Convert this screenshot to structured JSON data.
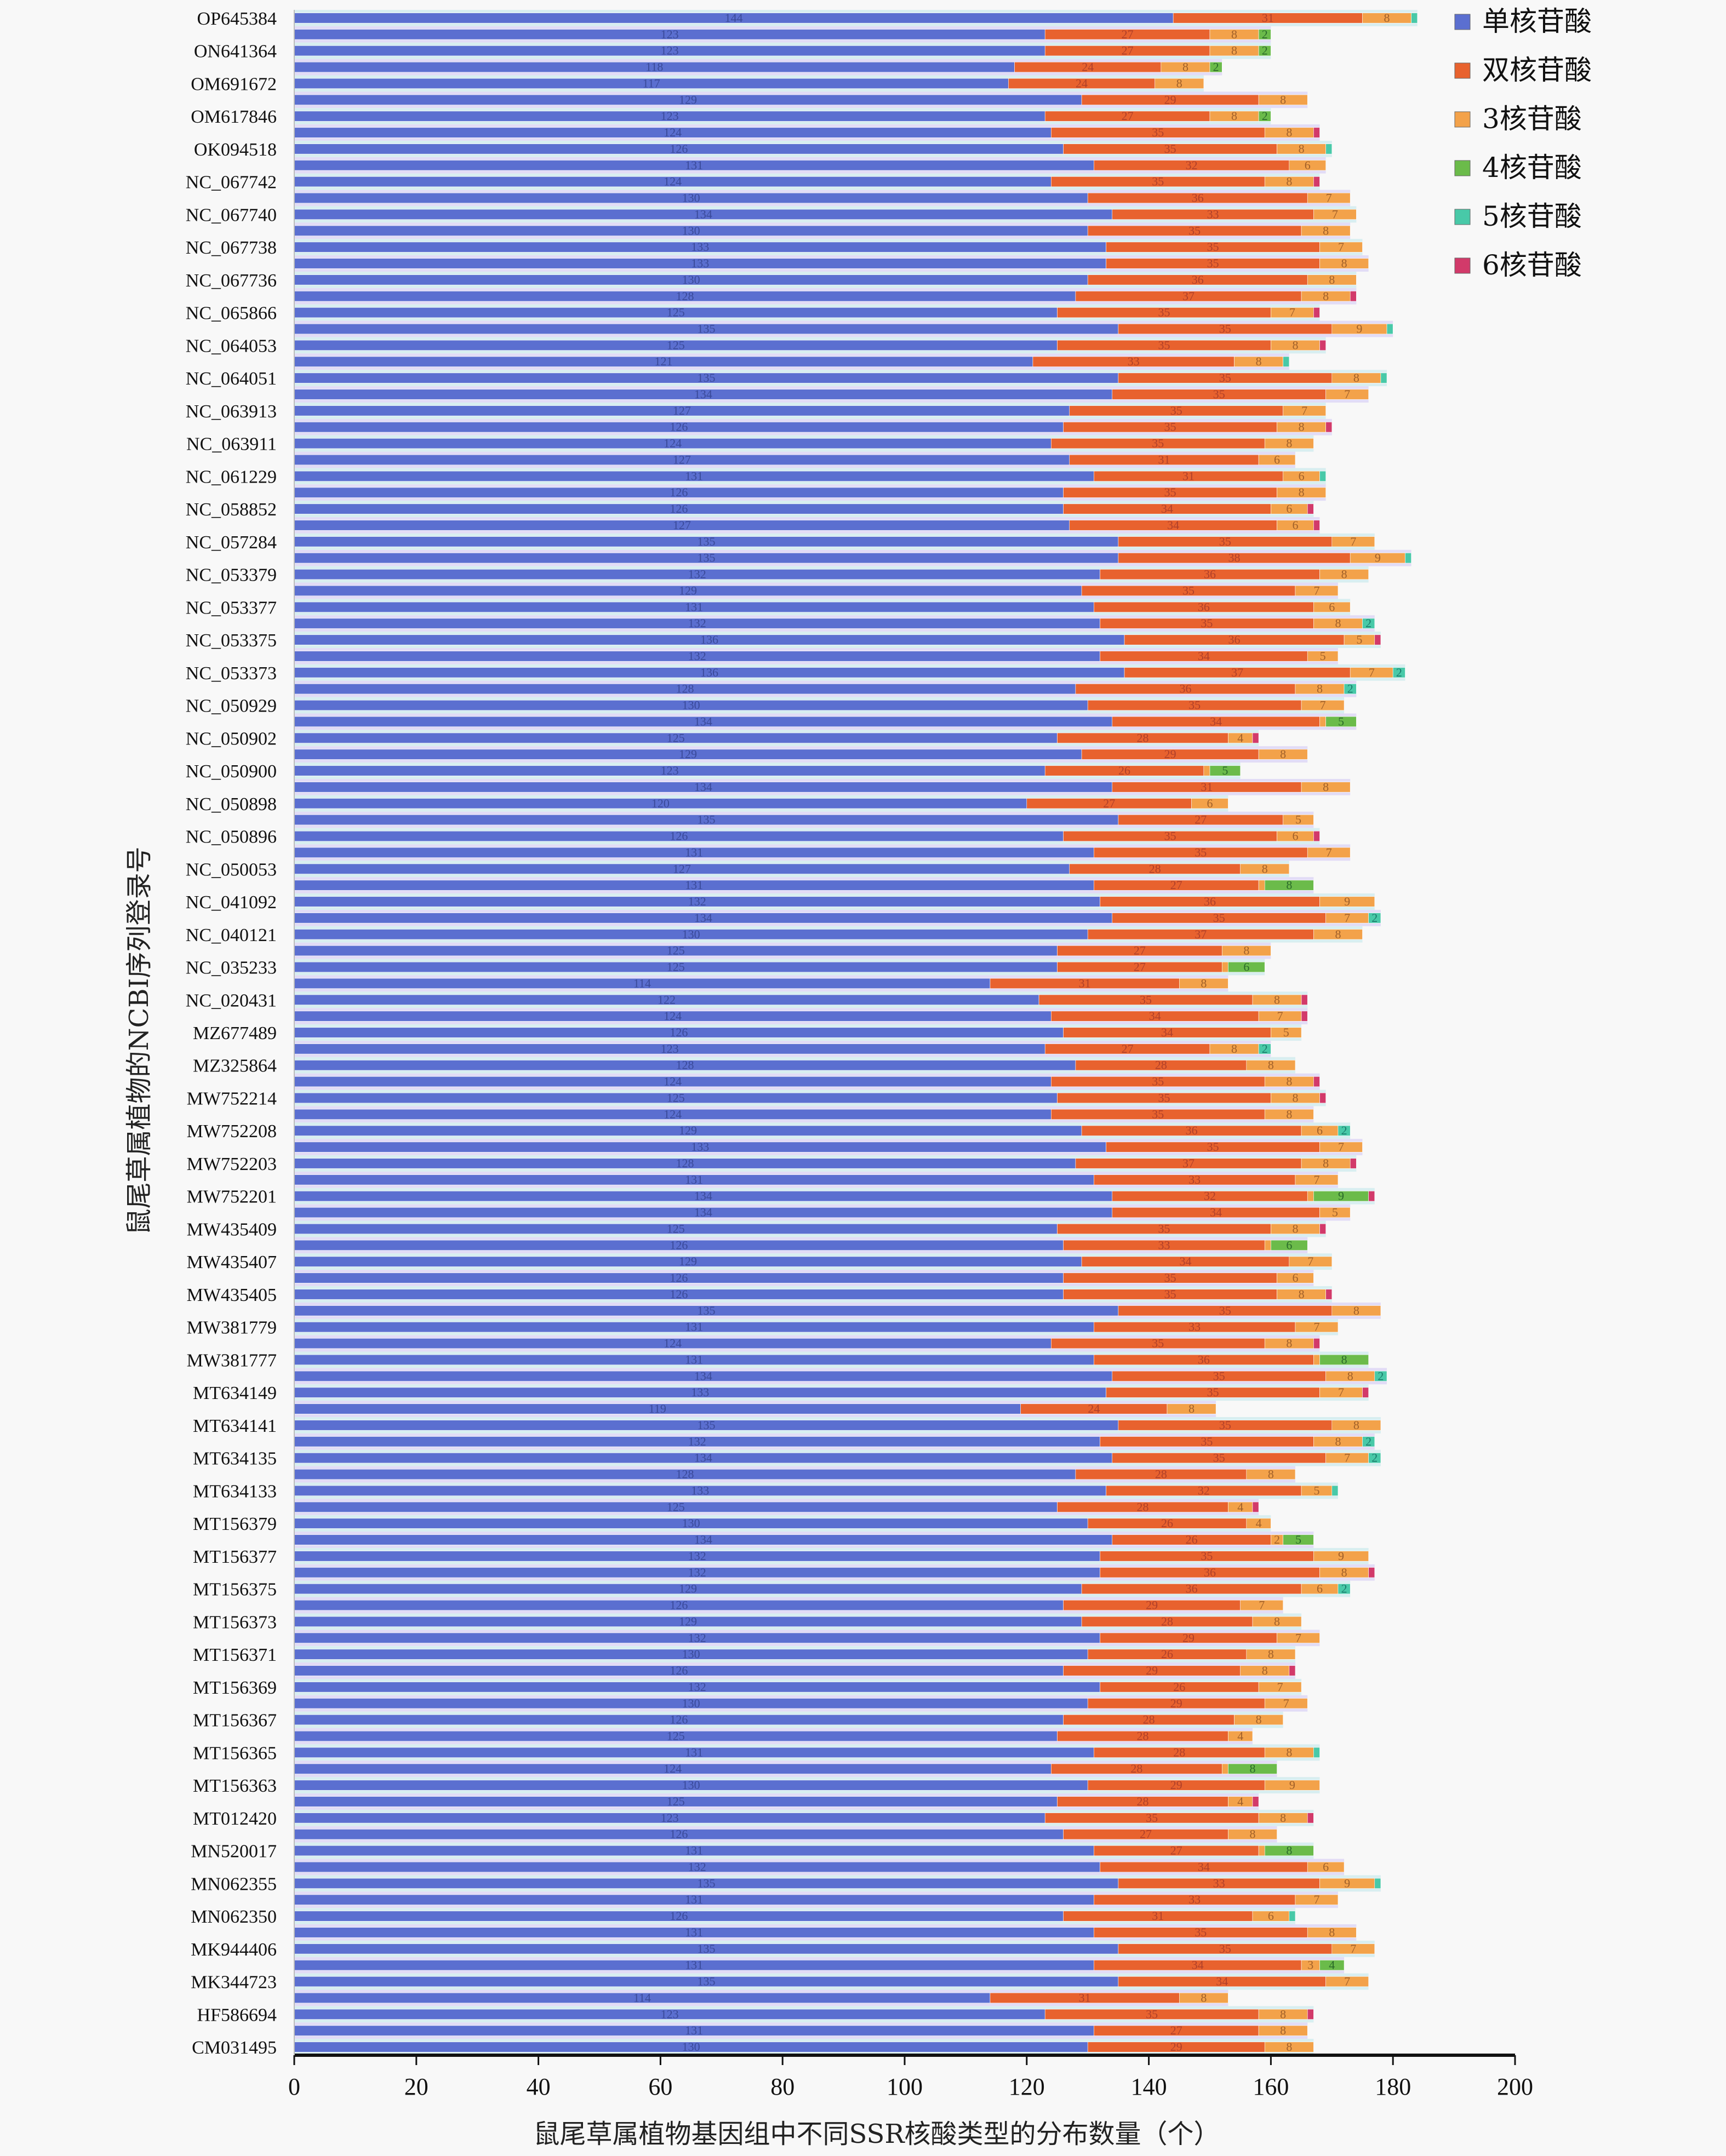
{
  "chart_data": {
    "type": "bar",
    "orientation": "horizontal",
    "stacked": true,
    "title": "",
    "xlabel": "鼠尾草属植物基因组中不同SSR核酸类型的分布数量（个）",
    "ylabel": "鼠尾草属植物的NCBI序列登录号",
    "xlim": [
      0,
      200
    ],
    "xticks": [
      0,
      20,
      40,
      60,
      80,
      100,
      120,
      140,
      160,
      180,
      200
    ],
    "legend_position": "top-right",
    "series_names": [
      "单核苷酸",
      "双核苷酸",
      "3核苷酸",
      "4核苷酸",
      "5核苷酸",
      "6核苷酸"
    ],
    "series_colors": [
      "#5b6fd0",
      "#e8622e",
      "#f3a24a",
      "#6bbb4a",
      "#48c9a8",
      "#d23a6a"
    ],
    "categories": [
      "OP645384",
      "",
      "ON641364",
      "",
      "OM691672",
      "",
      "OM617846",
      "",
      "OK094518",
      "",
      "NC_067742",
      "",
      "NC_067740",
      "",
      "NC_067738",
      "",
      "NC_067736",
      "",
      "NC_065866",
      "",
      "NC_064053",
      "",
      "NC_064051",
      "",
      "NC_063913",
      "",
      "NC_063911",
      "",
      "NC_061229",
      "",
      "NC_058852",
      "",
      "NC_057284",
      "",
      "NC_053379",
      "",
      "NC_053377",
      "",
      "NC_053375",
      "",
      "NC_053373",
      "",
      "NC_050929",
      "",
      "NC_050902",
      "",
      "NC_050900",
      "",
      "NC_050898",
      "",
      "NC_050896",
      "",
      "NC_050053",
      "",
      "NC_041092",
      "",
      "NC_040121",
      "",
      "NC_035233",
      "",
      "NC_020431",
      "",
      "MZ677489",
      "",
      "MZ325864",
      "",
      "MW752214",
      "",
      "MW752208",
      "",
      "MW752203",
      "",
      "MW752201",
      "",
      "MW435409",
      "",
      "MW435407",
      "",
      "MW435405",
      "",
      "MW381779",
      "",
      "MW381777",
      "",
      "MT634149",
      "",
      "MT634141",
      "",
      "MT634135",
      "",
      "MT634133",
      "",
      "MT156379",
      "",
      "MT156377",
      "",
      "MT156375",
      "",
      "MT156373",
      "",
      "MT156371",
      "",
      "MT156369",
      "",
      "MT156367",
      "",
      "MT156365",
      "",
      "MT156363",
      "",
      "MT012420",
      "",
      "MN520017",
      "",
      "MN062355",
      "",
      "MN062350",
      "",
      "MK944406",
      "",
      "MK344723",
      "",
      "HF586694",
      "",
      "CM031495"
    ],
    "bars": [
      [
        144,
        31,
        8,
        0,
        1,
        0
      ],
      [
        123,
        27,
        8,
        2,
        0,
        0
      ],
      [
        123,
        27,
        8,
        2,
        0,
        0
      ],
      [
        118,
        24,
        8,
        2,
        0,
        0
      ],
      [
        117,
        24,
        8,
        0,
        0,
        0
      ],
      [
        129,
        29,
        8,
        0,
        0,
        0
      ],
      [
        123,
        27,
        8,
        2,
        0,
        0
      ],
      [
        124,
        35,
        8,
        0,
        0,
        1
      ],
      [
        126,
        35,
        8,
        0,
        1,
        0
      ],
      [
        131,
        32,
        6,
        0,
        0,
        0
      ],
      [
        124,
        35,
        8,
        0,
        0,
        1
      ],
      [
        130,
        36,
        7,
        0,
        0,
        0
      ],
      [
        134,
        33,
        7,
        0,
        0,
        0
      ],
      [
        130,
        35,
        8,
        0,
        0,
        0
      ],
      [
        133,
        35,
        7,
        0,
        0,
        0
      ],
      [
        133,
        35,
        8,
        0,
        0,
        0
      ],
      [
        130,
        36,
        8,
        0,
        0,
        0
      ],
      [
        128,
        37,
        8,
        0,
        0,
        1
      ],
      [
        125,
        35,
        7,
        0,
        0,
        1
      ],
      [
        135,
        35,
        9,
        0,
        1,
        0
      ],
      [
        125,
        35,
        8,
        0,
        0,
        1
      ],
      [
        121,
        33,
        8,
        0,
        1,
        0
      ],
      [
        135,
        35,
        8,
        0,
        1,
        0
      ],
      [
        134,
        35,
        7,
        0,
        0,
        0
      ],
      [
        127,
        35,
        7,
        0,
        0,
        0
      ],
      [
        126,
        35,
        8,
        0,
        0,
        1
      ],
      [
        124,
        35,
        8,
        0,
        0,
        0
      ],
      [
        127,
        31,
        6,
        0,
        0,
        0
      ],
      [
        131,
        31,
        6,
        0,
        1,
        0
      ],
      [
        126,
        35,
        8,
        0,
        0,
        0
      ],
      [
        126,
        34,
        6,
        0,
        0,
        1
      ],
      [
        127,
        34,
        6,
        0,
        0,
        1
      ],
      [
        135,
        35,
        7,
        0,
        0,
        0
      ],
      [
        135,
        38,
        9,
        0,
        1,
        0
      ],
      [
        132,
        36,
        8,
        0,
        0,
        0
      ],
      [
        129,
        35,
        7,
        0,
        0,
        0
      ],
      [
        131,
        36,
        6,
        0,
        0,
        0
      ],
      [
        132,
        35,
        8,
        0,
        2,
        0
      ],
      [
        136,
        36,
        5,
        0,
        0,
        1
      ],
      [
        132,
        34,
        5,
        0,
        0,
        0
      ],
      [
        136,
        37,
        7,
        0,
        2,
        0
      ],
      [
        128,
        36,
        8,
        0,
        2,
        0
      ],
      [
        130,
        35,
        7,
        0,
        0,
        0
      ],
      [
        134,
        34,
        1,
        5,
        0,
        0
      ],
      [
        125,
        28,
        4,
        0,
        0,
        1
      ],
      [
        129,
        29,
        8,
        0,
        0,
        0
      ],
      [
        123,
        26,
        1,
        5,
        0,
        0
      ],
      [
        134,
        31,
        8,
        0,
        0,
        0
      ],
      [
        120,
        27,
        6,
        0,
        0,
        0
      ],
      [
        135,
        27,
        5,
        0,
        0,
        0
      ],
      [
        126,
        35,
        6,
        0,
        0,
        1
      ],
      [
        131,
        35,
        7,
        0,
        0,
        0
      ],
      [
        127,
        28,
        8,
        0,
        0,
        0
      ],
      [
        131,
        27,
        1,
        8,
        0,
        0
      ],
      [
        132,
        36,
        9,
        0,
        0,
        0
      ],
      [
        134,
        35,
        7,
        0,
        2,
        0
      ],
      [
        130,
        37,
        8,
        0,
        0,
        0
      ],
      [
        125,
        27,
        8,
        0,
        0,
        0
      ],
      [
        125,
        27,
        1,
        6,
        0,
        0
      ],
      [
        114,
        31,
        8,
        0,
        0,
        0
      ],
      [
        122,
        35,
        8,
        0,
        0,
        1
      ],
      [
        124,
        34,
        7,
        0,
        0,
        1
      ],
      [
        126,
        34,
        5,
        0,
        0,
        0
      ],
      [
        123,
        27,
        8,
        0,
        2,
        0
      ],
      [
        128,
        28,
        8,
        0,
        0,
        0
      ],
      [
        124,
        35,
        8,
        0,
        0,
        1
      ],
      [
        125,
        35,
        8,
        0,
        0,
        1
      ],
      [
        124,
        35,
        8,
        0,
        0,
        0
      ],
      [
        129,
        36,
        6,
        0,
        2,
        0
      ],
      [
        133,
        35,
        7,
        0,
        0,
        0
      ],
      [
        128,
        37,
        8,
        0,
        0,
        1
      ],
      [
        131,
        33,
        7,
        0,
        0,
        0
      ],
      [
        134,
        32,
        1,
        9,
        0,
        1
      ],
      [
        134,
        34,
        5,
        0,
        0,
        0
      ],
      [
        125,
        35,
        8,
        0,
        0,
        1
      ],
      [
        126,
        33,
        1,
        6,
        0,
        0
      ],
      [
        129,
        34,
        7,
        0,
        0,
        0
      ],
      [
        126,
        35,
        6,
        0,
        0,
        0
      ],
      [
        126,
        35,
        8,
        0,
        0,
        1
      ],
      [
        135,
        35,
        8,
        0,
        0,
        0
      ],
      [
        131,
        33,
        7,
        0,
        0,
        0
      ],
      [
        124,
        35,
        8,
        0,
        0,
        1
      ],
      [
        131,
        36,
        1,
        8,
        0,
        0
      ],
      [
        134,
        35,
        8,
        0,
        2,
        0
      ],
      [
        133,
        35,
        7,
        0,
        0,
        1
      ],
      [
        119,
        24,
        8,
        0,
        0,
        0
      ],
      [
        135,
        35,
        8,
        0,
        0,
        0
      ],
      [
        132,
        35,
        8,
        0,
        2,
        0
      ],
      [
        134,
        35,
        7,
        0,
        2,
        0
      ],
      [
        128,
        28,
        8,
        0,
        0,
        0
      ],
      [
        133,
        32,
        5,
        0,
        1,
        0
      ],
      [
        125,
        28,
        4,
        0,
        0,
        1
      ],
      [
        130,
        26,
        4,
        0,
        0,
        0
      ],
      [
        134,
        26,
        2,
        5,
        0,
        0
      ],
      [
        132,
        35,
        9,
        0,
        0,
        0
      ],
      [
        132,
        36,
        8,
        0,
        0,
        1
      ],
      [
        129,
        36,
        6,
        0,
        2,
        0
      ],
      [
        126,
        29,
        7,
        0,
        0,
        0
      ],
      [
        129,
        28,
        8,
        0,
        0,
        0
      ],
      [
        132,
        29,
        7,
        0,
        0,
        0
      ],
      [
        130,
        26,
        8,
        0,
        0,
        0
      ],
      [
        126,
        29,
        8,
        0,
        0,
        1
      ],
      [
        132,
        26,
        7,
        0,
        0,
        0
      ],
      [
        130,
        29,
        7,
        0,
        0,
        0
      ],
      [
        126,
        28,
        8,
        0,
        0,
        0
      ],
      [
        125,
        28,
        4,
        0,
        0,
        0
      ],
      [
        131,
        28,
        8,
        0,
        1,
        0
      ],
      [
        124,
        28,
        1,
        8,
        0,
        0
      ],
      [
        130,
        29,
        9,
        0,
        0,
        0
      ],
      [
        125,
        28,
        4,
        0,
        0,
        1
      ],
      [
        123,
        35,
        8,
        0,
        0,
        1
      ],
      [
        126,
        27,
        8,
        0,
        0,
        0
      ],
      [
        131,
        27,
        1,
        8,
        0,
        0
      ],
      [
        132,
        34,
        6,
        0,
        0,
        0
      ],
      [
        135,
        33,
        9,
        0,
        1,
        0
      ],
      [
        131,
        33,
        7,
        0,
        0,
        0
      ],
      [
        126,
        31,
        6,
        0,
        1,
        0
      ],
      [
        131,
        35,
        8,
        0,
        0,
        0
      ],
      [
        135,
        35,
        7,
        0,
        0,
        0
      ],
      [
        131,
        34,
        3,
        4,
        0,
        0
      ],
      [
        135,
        34,
        7,
        0,
        0,
        0
      ],
      [
        114,
        31,
        8,
        0,
        0,
        0
      ],
      [
        123,
        35,
        8,
        0,
        0,
        1
      ],
      [
        131,
        27,
        8,
        0,
        0,
        0
      ],
      [
        130,
        29,
        8,
        0,
        0,
        0
      ]
    ]
  }
}
